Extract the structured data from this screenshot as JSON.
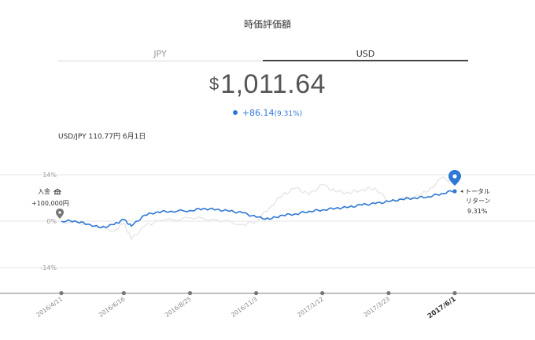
{
  "title": "時価評価額",
  "tabs": [
    {
      "label": "JPY",
      "active": false
    },
    {
      "label": "USD",
      "active": true
    }
  ],
  "valuation": {
    "currency_symbol": "$",
    "value": "1,011.64"
  },
  "change": {
    "value": "+86.14",
    "percent": "(9.31%)"
  },
  "fx_note": "USD/JPY 110.77円 6月1日",
  "colors": {
    "accent": "#2f78d6",
    "compare_line": "#e6e6e6",
    "grid": "#e5e5e5",
    "axis": "#9a9a9a"
  },
  "chart": {
    "y_ticks": [
      "14%",
      "0%",
      "-14%"
    ],
    "deposit": {
      "label": "入金",
      "icon": "bank-icon",
      "amount": "+100,000円"
    },
    "total_return": {
      "label_line1": "トータル",
      "label_line2": "リターン",
      "value": "9.31%"
    },
    "x_labels": [
      "2016/4/11",
      "2016/6/16",
      "2016/8/25",
      "2016/11/3",
      "2017/1/12",
      "2017/3/23",
      "2017/6/1"
    ]
  },
  "chart_data": {
    "type": "line",
    "ylim": [
      -14,
      14
    ],
    "y_ticks": [
      14,
      0,
      -14
    ],
    "x_ticks": [
      "2016/4/11",
      "2016/6/16",
      "2016/8/25",
      "2016/11/3",
      "2017/1/12",
      "2017/3/23",
      "2017/6/1"
    ],
    "series": [
      {
        "color": "#2f78d6",
        "x": [
          "2016/4/11",
          "2016/4/25",
          "2016/5/9",
          "2016/5/23",
          "2016/6/6",
          "2016/6/16",
          "2016/6/24",
          "2016/7/8",
          "2016/7/22",
          "2016/8/5",
          "2016/8/25",
          "2016/9/8",
          "2016/9/22",
          "2016/10/6",
          "2016/10/20",
          "2016/11/3",
          "2016/11/17",
          "2016/12/1",
          "2016/12/15",
          "2016/12/29",
          "2017/1/12",
          "2017/1/26",
          "2017/2/9",
          "2017/2/23",
          "2017/3/9",
          "2017/3/23",
          "2017/4/6",
          "2017/4/20",
          "2017/5/4",
          "2017/5/18",
          "2017/6/1"
        ],
        "y": [
          0.0,
          0.1,
          -0.9,
          -2.0,
          -1.0,
          0.5,
          -1.5,
          1.8,
          2.8,
          3.0,
          3.2,
          3.8,
          3.5,
          3.0,
          2.5,
          1.2,
          0.6,
          1.8,
          2.2,
          3.0,
          3.4,
          3.9,
          4.2,
          4.9,
          5.3,
          5.9,
          6.6,
          7.0,
          7.4,
          8.3,
          9.31
        ]
      },
      {
        "color": "#e6e6e6",
        "x": [
          "2016/4/11",
          "2016/5/9",
          "2016/6/6",
          "2016/6/16",
          "2016/6/24",
          "2016/7/8",
          "2016/7/22",
          "2016/8/25",
          "2016/9/22",
          "2016/10/20",
          "2016/11/3",
          "2016/11/17",
          "2016/12/1",
          "2016/12/15",
          "2016/12/29",
          "2017/1/12",
          "2017/1/26",
          "2017/2/9",
          "2017/2/23",
          "2017/3/9",
          "2017/3/23",
          "2017/4/20",
          "2017/5/4",
          "2017/5/18",
          "2017/6/1"
        ],
        "y": [
          0.0,
          -0.8,
          -3.0,
          -0.5,
          -5.5,
          -1.5,
          0.0,
          1.0,
          0.5,
          -1.0,
          0.0,
          4.0,
          8.0,
          10.0,
          8.0,
          11.0,
          9.0,
          8.5,
          9.5,
          10.0,
          6.0,
          7.5,
          9.0,
          13.0,
          12.0
        ]
      }
    ]
  }
}
